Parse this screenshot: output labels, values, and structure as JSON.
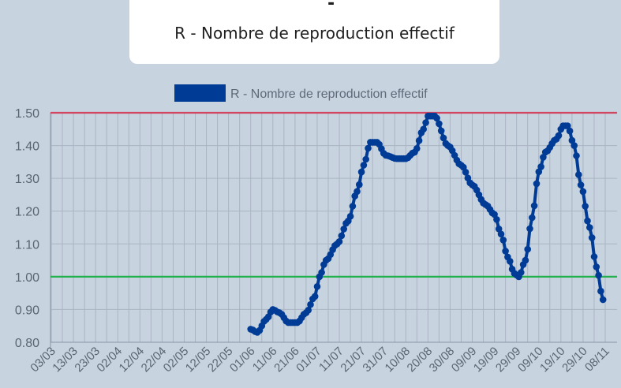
{
  "header": {
    "cut_glyph": "-",
    "title": "R - Nombre de reproduction effectif"
  },
  "chart_data": {
    "type": "line",
    "title": "R - Nombre de reproduction effectif",
    "legend": {
      "label": "R - Nombre de reproduction effectif",
      "position": "top"
    },
    "xlabel": "",
    "ylabel": "",
    "ylim": [
      0.8,
      1.5
    ],
    "yticks": [
      "1.50",
      "1.40",
      "1.30",
      "1.20",
      "1.10",
      "1.00",
      "0.90",
      "0.80"
    ],
    "grid": true,
    "xtick_labels": [
      "03/03",
      "13/03",
      "23/03",
      "02/04",
      "12/04",
      "22/04",
      "02/05",
      "12/05",
      "22/05",
      "01/06",
      "11/06",
      "21/06",
      "01/07",
      "11/07",
      "21/07",
      "31/07",
      "10/08",
      "20/08",
      "30/08",
      "09/09",
      "19/09",
      "29/09",
      "09/10",
      "19/10",
      "29/10",
      "08/11"
    ],
    "reference_lines": [
      {
        "y": 1.5,
        "color": "#d0455f"
      },
      {
        "y": 1.0,
        "color": "#22b14c"
      }
    ],
    "series_color": "#003c96",
    "keypoints": [
      [
        "01/06",
        0.84
      ],
      [
        "04/06",
        0.83
      ],
      [
        "08/06",
        0.87
      ],
      [
        "11/06",
        0.9
      ],
      [
        "14/06",
        0.89
      ],
      [
        "18/06",
        0.86
      ],
      [
        "22/06",
        0.86
      ],
      [
        "26/06",
        0.89
      ],
      [
        "30/06",
        0.94
      ],
      [
        "02/07",
        1.0
      ],
      [
        "05/07",
        1.05
      ],
      [
        "10/07",
        1.1
      ],
      [
        "15/07",
        1.17
      ],
      [
        "19/07",
        1.26
      ],
      [
        "22/07",
        1.34
      ],
      [
        "25/07",
        1.41
      ],
      [
        "28/07",
        1.41
      ],
      [
        "01/08",
        1.37
      ],
      [
        "06/08",
        1.36
      ],
      [
        "10/08",
        1.36
      ],
      [
        "14/08",
        1.38
      ],
      [
        "18/08",
        1.45
      ],
      [
        "20/08",
        1.49
      ],
      [
        "23/08",
        1.49
      ],
      [
        "29/08",
        1.4
      ],
      [
        "04/09",
        1.34
      ],
      [
        "09/09",
        1.28
      ],
      [
        "15/09",
        1.22
      ],
      [
        "19/09",
        1.19
      ],
      [
        "22/09",
        1.13
      ],
      [
        "25/09",
        1.06
      ],
      [
        "28/09",
        1.01
      ],
      [
        "30/09",
        1.0
      ],
      [
        "03/10",
        1.05
      ],
      [
        "06/10",
        1.18
      ],
      [
        "09/10",
        1.32
      ],
      [
        "12/10",
        1.38
      ],
      [
        "17/10",
        1.42
      ],
      [
        "20/10",
        1.46
      ],
      [
        "22/10",
        1.46
      ],
      [
        "25/10",
        1.4
      ],
      [
        "28/10",
        1.28
      ],
      [
        "01/11",
        1.15
      ],
      [
        "04/11",
        1.03
      ],
      [
        "07/11",
        0.93
      ]
    ]
  }
}
